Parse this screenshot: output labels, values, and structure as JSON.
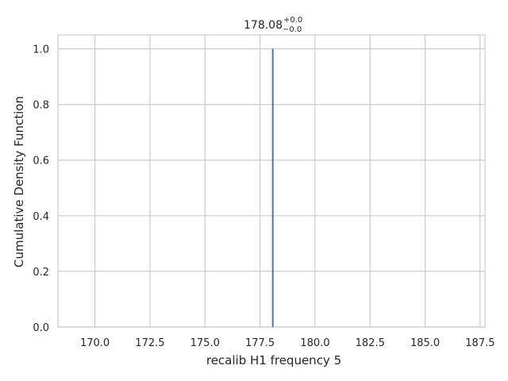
{
  "chart_data": {
    "type": "line",
    "title": {
      "value": "178.08",
      "upper": "+0.0",
      "lower": "−0.0"
    },
    "xlabel": "recalib H1 frequency 5",
    "ylabel": "Cumulative Density Function",
    "xlim": [
      168.32,
      187.72
    ],
    "ylim": [
      0.0,
      1.05
    ],
    "xticks": [
      "170.0",
      "172.5",
      "175.0",
      "177.5",
      "180.0",
      "182.5",
      "185.0",
      "187.5"
    ],
    "yticks": [
      "0.0",
      "0.2",
      "0.4",
      "0.6",
      "0.8",
      "1.0"
    ],
    "grid": true,
    "series": [
      {
        "name": "cdf",
        "x": [
          178.08,
          178.08
        ],
        "y": [
          0.0,
          1.0
        ],
        "color": "#4c72b0"
      }
    ]
  },
  "colors": {
    "grid": "#cccccc",
    "spine": "#cccccc",
    "text": "#262626",
    "line": "#4c72b0"
  }
}
